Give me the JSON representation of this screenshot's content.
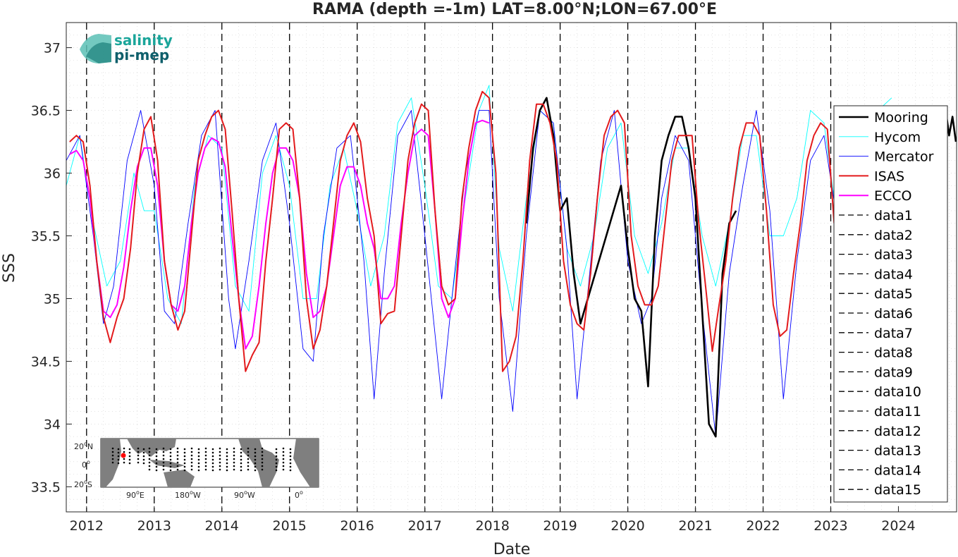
{
  "chart_data": {
    "type": "line",
    "title": "RAMA (depth =-1m) LAT=8.00°N;LON=67.00°E",
    "xlabel": "Date",
    "ylabel": "SSS",
    "xlim": [
      2011.7,
      2024.86
    ],
    "ylim": [
      33.3,
      37.2
    ],
    "x_ticks": [
      2012,
      2013,
      2014,
      2015,
      2016,
      2017,
      2018,
      2019,
      2020,
      2021,
      2022,
      2023,
      2024
    ],
    "x_tick_labels": [
      "2012",
      "2013",
      "2014",
      "2015",
      "2016",
      "2017",
      "2018",
      "2019",
      "2020",
      "2021",
      "2022",
      "2023",
      "2024"
    ],
    "y_ticks": [
      33.5,
      34,
      34.5,
      35,
      35.5,
      36,
      36.5,
      37
    ],
    "y_tick_labels": [
      "33.5",
      "34",
      "34.5",
      "35",
      "35.5",
      "36",
      "36.5",
      "37"
    ],
    "grid": true,
    "legend_position": "right",
    "vertical_markers": [
      2012,
      2013,
      2014,
      2015,
      2016,
      2017,
      2018,
      2019,
      2020,
      2021,
      2022,
      2023
    ],
    "series": [
      {
        "name": "Mooring",
        "color": "#000000",
        "x": [
          2018.5,
          2018.6,
          2018.7,
          2018.8,
          2018.9,
          2019.0,
          2019.1,
          2019.2,
          2019.3,
          2019.9,
          2020.0,
          2020.1,
          2020.2,
          2020.3,
          2020.4,
          2020.5,
          2020.6,
          2020.7,
          2020.8,
          2020.9,
          2021.0,
          2021.1,
          2021.2,
          2021.3,
          2021.4,
          2021.5,
          2021.6
        ],
        "y": [
          35.6,
          36.2,
          36.5,
          36.6,
          36.3,
          35.7,
          35.8,
          35.2,
          34.8,
          35.9,
          35.4,
          35.0,
          34.9,
          34.3,
          35.5,
          36.1,
          36.3,
          36.45,
          36.45,
          36.2,
          35.8,
          34.9,
          34.0,
          33.9,
          35.2,
          35.6,
          35.7
        ],
        "x2": [
          2024.65,
          2024.7,
          2024.75,
          2024.8,
          2024.85
        ],
        "y2": [
          36.4,
          36.5,
          36.3,
          36.45,
          36.25
        ]
      },
      {
        "name": "Hycom",
        "color": "#00ffff",
        "x": [
          2011.7,
          2011.9,
          2012.1,
          2012.3,
          2012.5,
          2012.7,
          2012.85,
          2013.0,
          2013.2,
          2013.4,
          2013.6,
          2013.8,
          2014.0,
          2014.2,
          2014.4,
          2014.6,
          2014.8,
          2015.0,
          2015.2,
          2015.4,
          2015.6,
          2015.8,
          2016.0,
          2016.2,
          2016.4,
          2016.6,
          2016.8,
          2017.0,
          2017.2,
          2017.4,
          2017.6,
          2017.8,
          2017.95,
          2018.1,
          2018.3,
          2018.5,
          2018.7,
          2018.9,
          2019.1,
          2019.3,
          2019.5,
          2019.7,
          2019.9,
          2020.1,
          2020.3,
          2020.5,
          2020.7,
          2020.9,
          2021.1,
          2021.3,
          2021.5,
          2021.7,
          2021.9,
          2022.1,
          2022.3,
          2022.5,
          2022.7,
          2022.9,
          2023.1,
          2023.3,
          2023.5,
          2023.7,
          2023.9
        ],
        "y": [
          35.9,
          36.3,
          35.6,
          35.1,
          35.3,
          36.0,
          35.7,
          35.7,
          35.0,
          34.8,
          35.9,
          36.3,
          36.2,
          35.1,
          34.9,
          36.0,
          36.3,
          35.9,
          35.0,
          35.0,
          35.9,
          36.2,
          35.7,
          35.1,
          35.5,
          36.4,
          36.6,
          35.9,
          35.1,
          35.0,
          35.8,
          36.5,
          36.7,
          35.4,
          34.9,
          35.8,
          36.5,
          36.4,
          35.4,
          35.1,
          35.5,
          36.2,
          36.4,
          35.5,
          35.2,
          35.6,
          36.2,
          36.2,
          35.5,
          35.1,
          35.6,
          36.3,
          36.3,
          35.5,
          35.5,
          35.8,
          36.5,
          36.4,
          35.6,
          35.3,
          35.7,
          36.5,
          36.6
        ]
      },
      {
        "name": "Mercator",
        "color": "#0000ff",
        "x": [
          2011.7,
          2011.9,
          2012.1,
          2012.25,
          2012.4,
          2012.6,
          2012.8,
          2013.0,
          2013.15,
          2013.3,
          2013.5,
          2013.7,
          2013.9,
          2014.1,
          2014.2,
          2014.4,
          2014.6,
          2014.8,
          2015.0,
          2015.2,
          2015.35,
          2015.5,
          2015.7,
          2015.9,
          2016.1,
          2016.25,
          2016.4,
          2016.6,
          2016.8,
          2017.0,
          2017.25,
          2017.4,
          2017.6,
          2017.8,
          2017.95,
          2018.1,
          2018.3,
          2018.5,
          2018.7,
          2018.9,
          2019.1,
          2019.25,
          2019.4,
          2019.6,
          2019.8,
          2020.0,
          2020.2,
          2020.35,
          2020.5,
          2020.7,
          2020.9,
          2021.1,
          2021.3,
          2021.5,
          2021.7,
          2021.9,
          2022.1,
          2022.3,
          2022.5,
          2022.7,
          2022.9,
          2023.1,
          2023.3,
          2023.5,
          2023.7
        ],
        "y": [
          36.1,
          36.3,
          35.5,
          34.8,
          35.1,
          36.1,
          36.5,
          35.9,
          34.9,
          34.8,
          35.6,
          36.3,
          36.5,
          35.0,
          34.6,
          35.3,
          36.1,
          36.4,
          35.6,
          34.6,
          34.5,
          35.5,
          36.2,
          36.3,
          35.3,
          34.2,
          35.2,
          36.3,
          36.5,
          35.5,
          34.2,
          35.0,
          36.0,
          36.5,
          36.5,
          35.0,
          34.1,
          35.5,
          36.5,
          36.4,
          35.4,
          34.2,
          35.0,
          36.1,
          36.5,
          35.3,
          34.8,
          35.0,
          35.8,
          36.3,
          36.1,
          34.9,
          33.9,
          35.2,
          35.9,
          36.5,
          35.7,
          34.2,
          35.3,
          36.1,
          36.3,
          35.6,
          34.8,
          35.4,
          36.0
        ]
      },
      {
        "name": "ISAS",
        "color": "#e31a1c",
        "x": [
          2011.75,
          2011.85,
          2011.95,
          2012.05,
          2012.15,
          2012.25,
          2012.35,
          2012.45,
          2012.55,
          2012.65,
          2012.75,
          2012.85,
          2012.95,
          2013.05,
          2013.15,
          2013.25,
          2013.35,
          2013.45,
          2013.55,
          2013.65,
          2013.75,
          2013.85,
          2013.95,
          2014.05,
          2014.15,
          2014.25,
          2014.35,
          2014.45,
          2014.55,
          2014.65,
          2014.75,
          2014.85,
          2014.95,
          2015.05,
          2015.15,
          2015.25,
          2015.35,
          2015.45,
          2015.55,
          2015.65,
          2015.75,
          2015.85,
          2015.95,
          2016.05,
          2016.15,
          2016.25,
          2016.35,
          2016.45,
          2016.55,
          2016.65,
          2016.75,
          2016.85,
          2016.95,
          2017.05,
          2017.15,
          2017.25,
          2017.35,
          2017.45,
          2017.55,
          2017.65,
          2017.75,
          2017.85,
          2017.95,
          2018.05,
          2018.15,
          2018.25,
          2018.35,
          2018.45,
          2018.55,
          2018.65,
          2018.75,
          2018.85,
          2018.95,
          2019.05,
          2019.15,
          2019.25,
          2019.35,
          2019.45,
          2019.55,
          2019.65,
          2019.75,
          2019.85,
          2019.95,
          2020.05,
          2020.15,
          2020.25,
          2020.35,
          2020.45,
          2020.55,
          2020.65,
          2020.75,
          2020.85,
          2020.95,
          2021.05,
          2021.15,
          2021.25,
          2021.35,
          2021.45,
          2021.55,
          2021.65,
          2021.75,
          2021.85,
          2021.95,
          2022.05,
          2022.15,
          2022.25,
          2022.35,
          2022.45,
          2022.55,
          2022.65,
          2022.75,
          2022.85,
          2022.95,
          2023.05
        ],
        "y": [
          36.25,
          36.3,
          36.25,
          35.9,
          35.3,
          34.85,
          34.65,
          34.85,
          35.0,
          35.4,
          36.0,
          36.35,
          36.45,
          36.1,
          35.3,
          34.95,
          34.75,
          34.9,
          35.5,
          36.1,
          36.3,
          36.45,
          36.5,
          36.35,
          35.7,
          35.0,
          34.42,
          34.55,
          34.65,
          35.3,
          35.8,
          36.35,
          36.4,
          36.35,
          35.8,
          35.0,
          34.6,
          34.75,
          35.1,
          35.6,
          36.1,
          36.3,
          36.4,
          36.25,
          35.8,
          35.5,
          34.8,
          34.88,
          34.9,
          35.5,
          36.1,
          36.4,
          36.55,
          36.5,
          35.7,
          35.1,
          34.95,
          35.0,
          35.8,
          36.2,
          36.5,
          36.65,
          36.6,
          36.0,
          34.42,
          34.5,
          34.7,
          35.3,
          36.1,
          36.55,
          36.55,
          36.4,
          36.1,
          35.3,
          34.95,
          34.8,
          34.75,
          35.2,
          35.8,
          36.3,
          36.45,
          36.5,
          36.4,
          35.5,
          35.1,
          34.95,
          34.95,
          35.1,
          35.6,
          36.1,
          36.3,
          36.3,
          36.3,
          35.6,
          35.1,
          34.58,
          34.95,
          35.3,
          35.8,
          36.2,
          36.4,
          36.4,
          36.3,
          35.7,
          34.95,
          34.7,
          34.75,
          35.2,
          35.6,
          36.1,
          36.3,
          36.4,
          36.35,
          35.6
        ],
        "x2": [
          2022.95,
          2023.0,
          2023.05
        ],
        "y2": [
          36.4,
          36.1,
          35.6
        ]
      },
      {
        "name": "ECCO",
        "color": "#ff00ff",
        "x": [
          2011.75,
          2011.85,
          2011.95,
          2012.05,
          2012.15,
          2012.25,
          2012.35,
          2012.45,
          2012.55,
          2012.65,
          2012.75,
          2012.85,
          2012.95,
          2013.05,
          2013.15,
          2013.25,
          2013.35,
          2013.45,
          2013.55,
          2013.65,
          2013.75,
          2013.85,
          2013.95,
          2014.05,
          2014.15,
          2014.25,
          2014.35,
          2014.45,
          2014.55,
          2014.65,
          2014.75,
          2014.85,
          2014.95,
          2015.05,
          2015.15,
          2015.25,
          2015.35,
          2015.45,
          2015.55,
          2015.65,
          2015.75,
          2015.85,
          2015.95,
          2016.05,
          2016.15,
          2016.25,
          2016.35,
          2016.45,
          2016.55,
          2016.65,
          2016.75,
          2016.85,
          2016.95,
          2017.05,
          2017.15,
          2017.25,
          2017.35,
          2017.45,
          2017.55,
          2017.65,
          2017.75,
          2017.85,
          2017.95
        ],
        "y": [
          36.15,
          36.18,
          36.1,
          35.8,
          35.3,
          34.9,
          34.85,
          34.95,
          35.25,
          35.7,
          36.05,
          36.2,
          36.2,
          35.9,
          35.3,
          34.95,
          34.9,
          35.1,
          35.6,
          36.0,
          36.2,
          36.28,
          36.25,
          36.05,
          35.5,
          35.0,
          34.6,
          34.7,
          35.1,
          35.6,
          36.0,
          36.2,
          36.2,
          36.1,
          35.8,
          35.2,
          34.85,
          34.9,
          35.1,
          35.5,
          35.9,
          36.05,
          36.05,
          35.9,
          35.6,
          35.4,
          35.0,
          35.0,
          35.1,
          35.6,
          36.0,
          36.3,
          36.35,
          36.3,
          35.7,
          35.0,
          34.85,
          35.0,
          35.6,
          36.1,
          36.4,
          36.42,
          36.4
        ]
      }
    ],
    "legend": [
      "Mooring",
      "Hycom",
      "Mercator",
      "ISAS",
      "ECCO",
      "data1",
      "data2",
      "data3",
      "data4",
      "data5",
      "data6",
      "data7",
      "data8",
      "data9",
      "data10",
      "data11",
      "data12",
      "data13",
      "data14",
      "data15"
    ]
  },
  "logo": {
    "line1": "salinity",
    "line2": "pi-mep",
    "color1": "#1aa59a",
    "color2": "#0f5f6b"
  },
  "inset_map": {
    "lat_labels": [
      "20",
      "N",
      "0",
      "20",
      "S"
    ],
    "lon_labels": [
      "90",
      "E",
      "180",
      "W",
      "90",
      "W",
      "0"
    ],
    "degree_sign": "o"
  }
}
